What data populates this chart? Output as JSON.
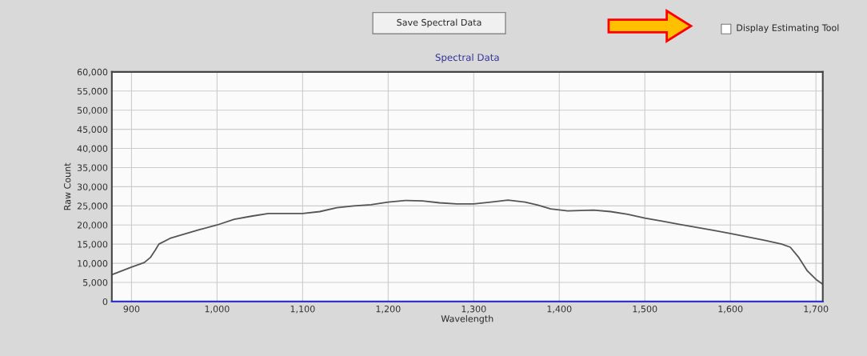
{
  "chart_data": {
    "type": "line",
    "title": "Spectral Data",
    "xlabel": "Wavelength",
    "ylabel": "Raw Count",
    "annotations": [
      "Save Spectral Data",
      "Display Estimating Tool"
    ],
    "x": [
      877,
      900,
      915,
      922,
      928,
      932,
      945,
      960,
      980,
      1000,
      1020,
      1040,
      1060,
      1080,
      1100,
      1120,
      1140,
      1160,
      1180,
      1200,
      1220,
      1240,
      1260,
      1280,
      1300,
      1320,
      1340,
      1360,
      1375,
      1390,
      1410,
      1440,
      1460,
      1480,
      1500,
      1520,
      1540,
      1560,
      1580,
      1600,
      1620,
      1640,
      1660,
      1670,
      1680,
      1690,
      1700,
      1708
    ],
    "series": [
      {
        "color": "#555555",
        "values": [
          7000,
          9000,
          10200,
          11500,
          13500,
          15000,
          16500,
          17500,
          18800,
          20000,
          21500,
          22300,
          23000,
          23000,
          23000,
          23500,
          24500,
          25000,
          25300,
          26000,
          26400,
          26300,
          25800,
          25500,
          25500,
          26000,
          26500,
          26000,
          25200,
          24200,
          23700,
          23900,
          23500,
          22800,
          21800,
          21000,
          20200,
          19400,
          18600,
          17800,
          16900,
          16000,
          15000,
          14200,
          11500,
          8000,
          5800,
          4500
        ]
      }
    ],
    "xlim": [
      877,
      1708
    ],
    "ylim": [
      0,
      60000
    ],
    "xticks": [
      900,
      {
        "value": 1000,
        "label": "1,000"
      },
      {
        "value": 1100,
        "label": "1,100"
      },
      {
        "value": 1200,
        "label": "1,200"
      },
      {
        "value": 1300,
        "label": "1,300"
      },
      {
        "value": 1400,
        "label": "1,400"
      },
      {
        "value": 1500,
        "label": "1,500"
      },
      {
        "value": 1600,
        "label": "1,600"
      },
      {
        "value": 1700,
        "label": "1,700"
      }
    ],
    "yticks": [
      0,
      {
        "value": 5000,
        "label": "5,000"
      },
      {
        "value": 10000,
        "label": "10,000"
      },
      {
        "value": 15000,
        "label": "15,000"
      },
      {
        "value": 20000,
        "label": "20,000"
      },
      {
        "value": 25000,
        "label": "25,000"
      },
      {
        "value": 30000,
        "label": "30,000"
      },
      {
        "value": 35000,
        "label": "35,000"
      },
      {
        "value": 40000,
        "label": "40,000"
      },
      {
        "value": 45000,
        "label": "45,000"
      },
      {
        "value": 50000,
        "label": "50,000"
      },
      {
        "value": 55000,
        "label": "55,000"
      },
      {
        "value": 60000,
        "label": "60,000"
      }
    ],
    "grid": true,
    "marker": "none",
    "line_style": "solid"
  }
}
